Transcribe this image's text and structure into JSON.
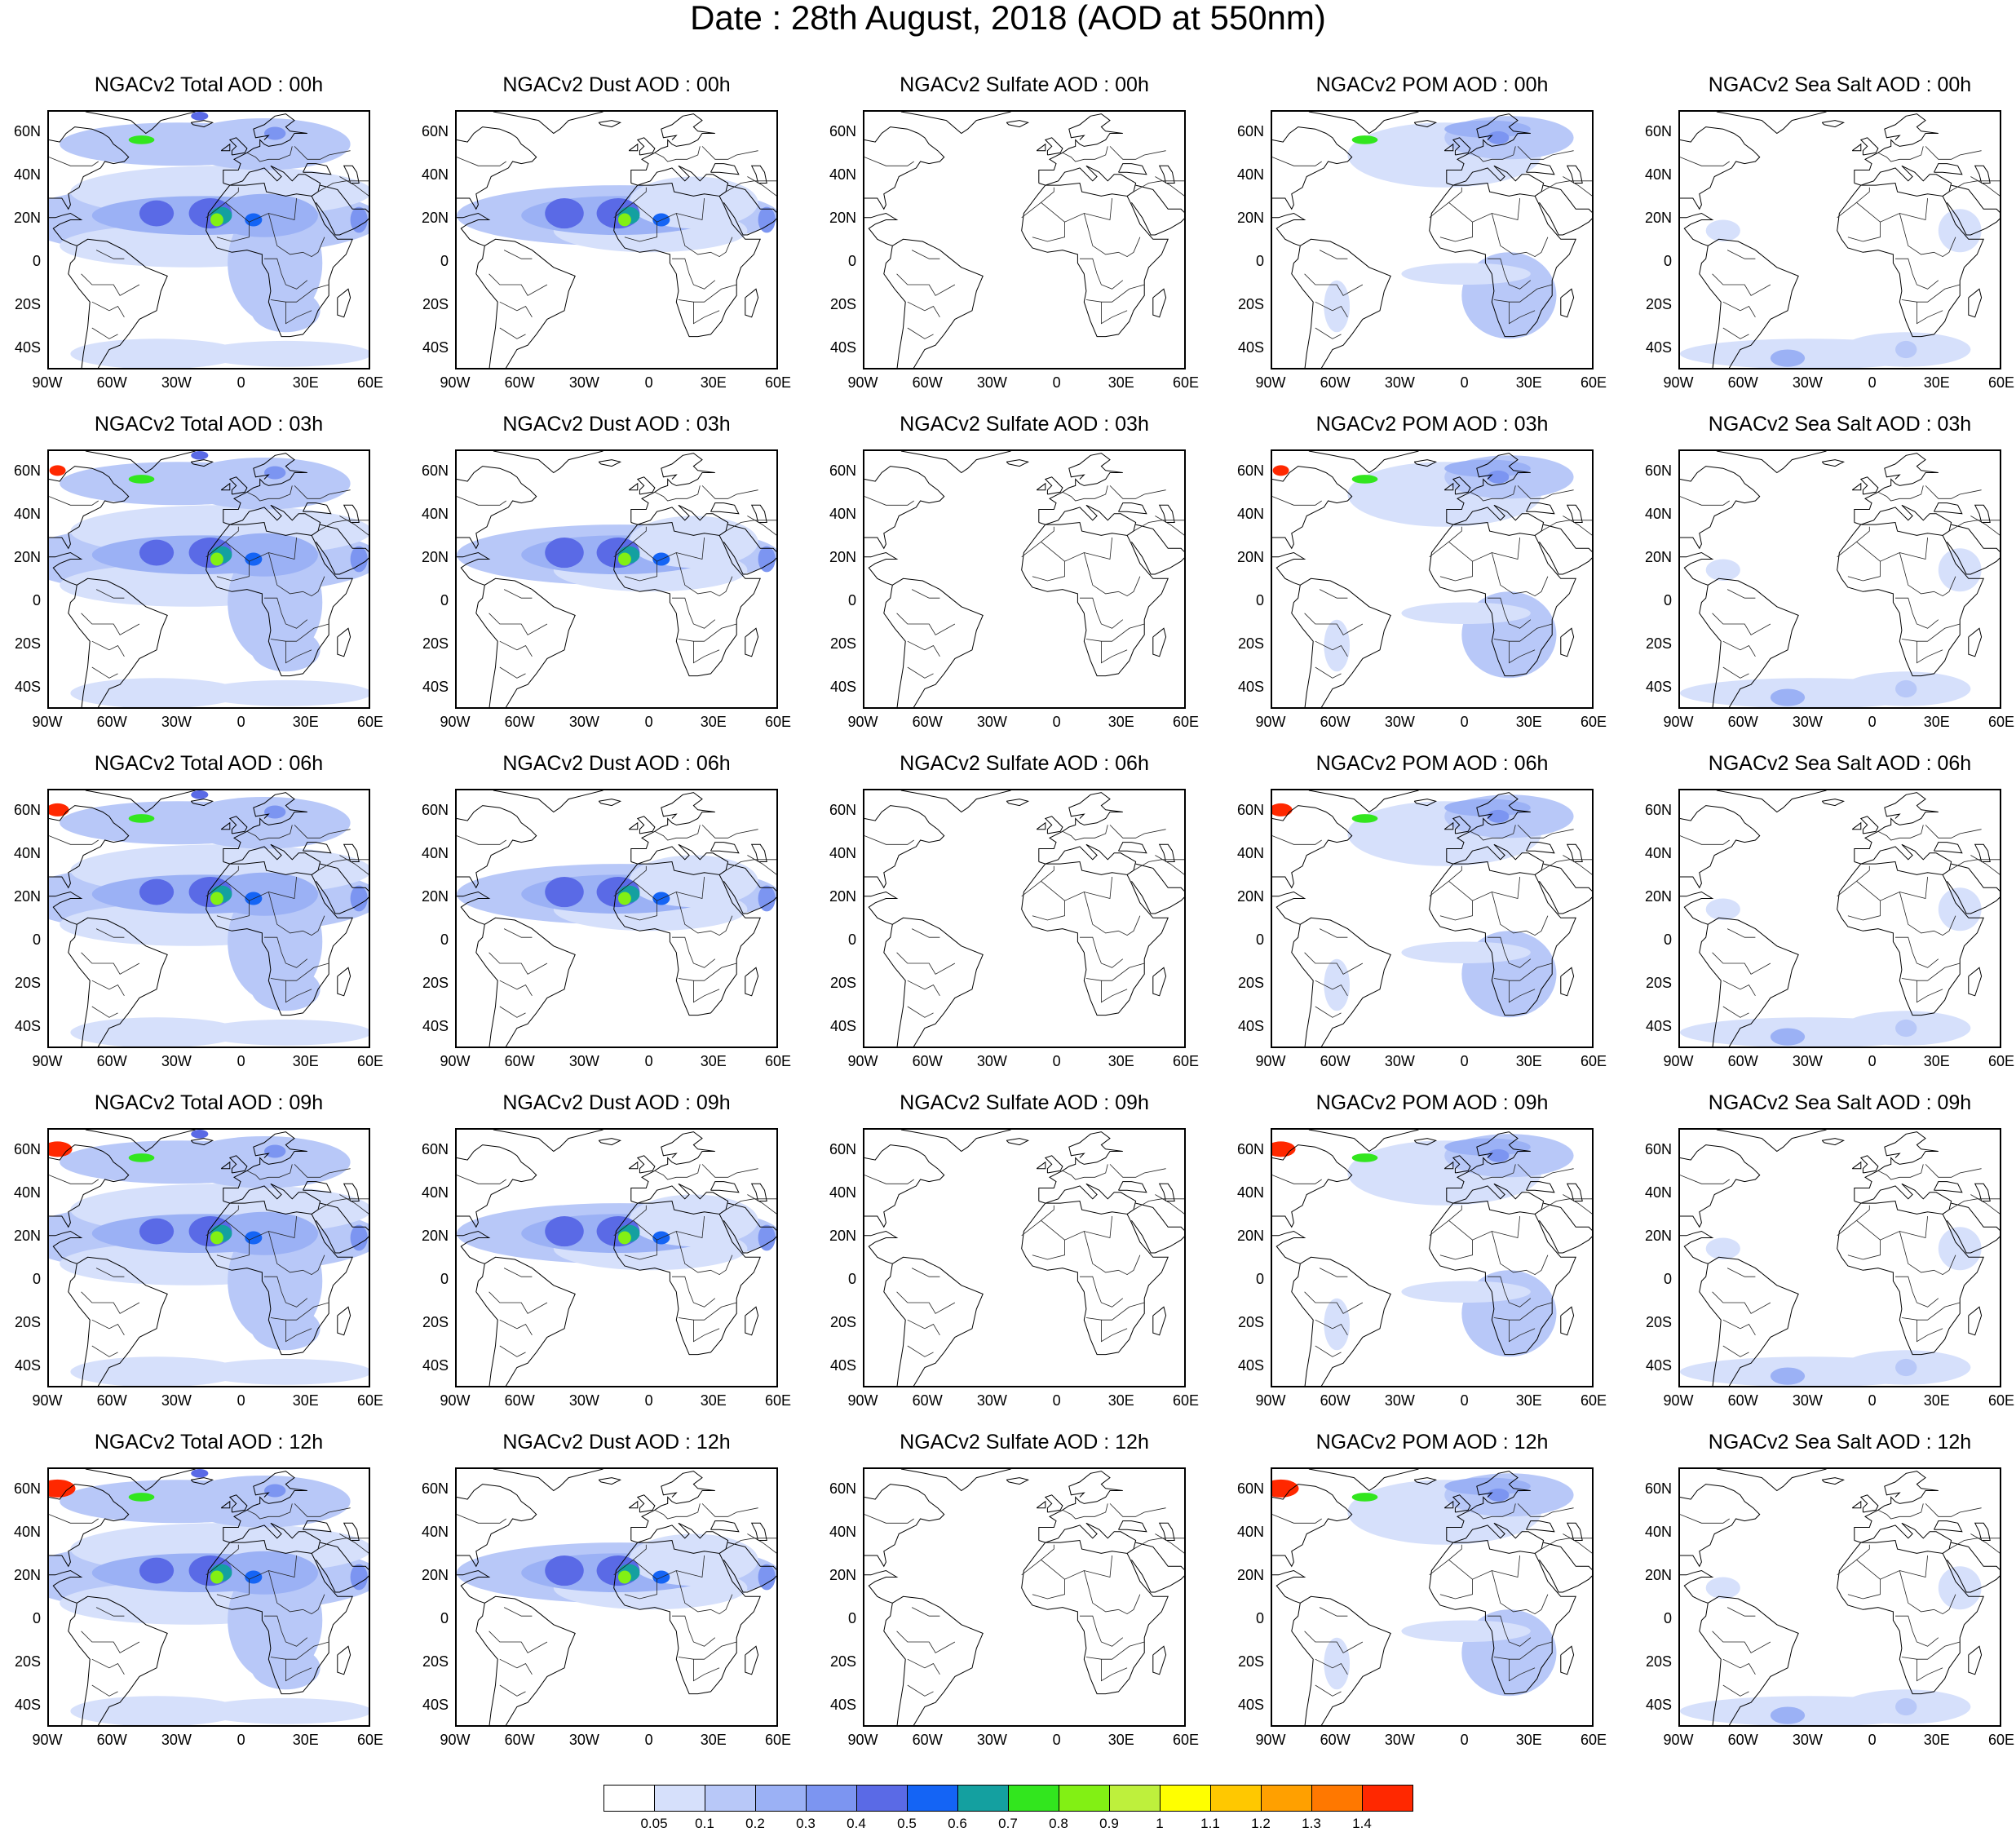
{
  "title": "Date : 28th August, 2018 (AOD at 550nm)",
  "latitude_labels": [
    "60N",
    "40N",
    "20N",
    "0",
    "20S",
    "40S"
  ],
  "longitude_labels": [
    "90W",
    "60W",
    "30W",
    "0",
    "30E",
    "60E"
  ],
  "rows": [
    {
      "time": "00h",
      "panels": [
        {
          "title": "NGACv2 Total AOD : 00h",
          "type": "total"
        },
        {
          "title": "NGACv2 Dust AOD : 00h",
          "type": "dust"
        },
        {
          "title": "NGACv2 Sulfate AOD : 00h",
          "type": "sulfate"
        },
        {
          "title": "NGACv2 POM AOD : 00h",
          "type": "pom"
        },
        {
          "title": "NGACv2 Sea Salt AOD : 00h",
          "type": "seasalt"
        }
      ]
    },
    {
      "time": "03h",
      "panels": [
        {
          "title": "NGACv2 Total AOD : 03h",
          "type": "total"
        },
        {
          "title": "NGACv2 Dust AOD : 03h",
          "type": "dust"
        },
        {
          "title": "NGACv2 Sulfate AOD : 03h",
          "type": "sulfate"
        },
        {
          "title": "NGACv2 POM AOD : 03h",
          "type": "pom"
        },
        {
          "title": "NGACv2 Sea Salt AOD : 03h",
          "type": "seasalt"
        }
      ]
    },
    {
      "time": "06h",
      "panels": [
        {
          "title": "NGACv2 Total AOD : 06h",
          "type": "total"
        },
        {
          "title": "NGACv2 Dust AOD : 06h",
          "type": "dust"
        },
        {
          "title": "NGACv2 Sulfate AOD : 06h",
          "type": "sulfate"
        },
        {
          "title": "NGACv2 POM AOD : 06h",
          "type": "pom"
        },
        {
          "title": "NGACv2 Sea Salt AOD : 06h",
          "type": "seasalt"
        }
      ]
    },
    {
      "time": "09h",
      "panels": [
        {
          "title": "NGACv2 Total AOD : 09h",
          "type": "total"
        },
        {
          "title": "NGACv2 Dust AOD : 09h",
          "type": "dust"
        },
        {
          "title": "NGACv2 Sulfate AOD : 09h",
          "type": "sulfate"
        },
        {
          "title": "NGACv2 POM AOD : 09h",
          "type": "pom"
        },
        {
          "title": "NGACv2 Sea Salt  AOD : 09h",
          "type": "seasalt"
        }
      ]
    },
    {
      "time": "12h",
      "panels": [
        {
          "title": "NGACv2 Total AOD  : 12h",
          "type": "total"
        },
        {
          "title": "NGACv2 Dust AOD : 12h",
          "type": "dust"
        },
        {
          "title": "NGACv2 Sulfate AOD : 12h",
          "type": "sulfate"
        },
        {
          "title": "NGACv2 POM  AOD : 12h",
          "type": "pom"
        },
        {
          "title": "NGACv2 Sea Salt  AOD : 12h",
          "type": "seasalt"
        }
      ]
    }
  ],
  "colorbar": {
    "levels": [
      "0.05",
      "0.1",
      "0.2",
      "0.3",
      "0.4",
      "0.5",
      "0.6",
      "0.7",
      "0.8",
      "0.9",
      "1",
      "1.1",
      "1.2",
      "1.3",
      "1.4"
    ],
    "colors": [
      "#ffffff",
      "#d6e0fb",
      "#b8c8f8",
      "#9bb1f5",
      "#7c95f1",
      "#5a6ae6",
      "#1464f5",
      "#14a0a0",
      "#32e61e",
      "#82f014",
      "#bef03c",
      "#ffff00",
      "#ffc800",
      "#ffa000",
      "#ff7800",
      "#ff2800"
    ]
  }
}
